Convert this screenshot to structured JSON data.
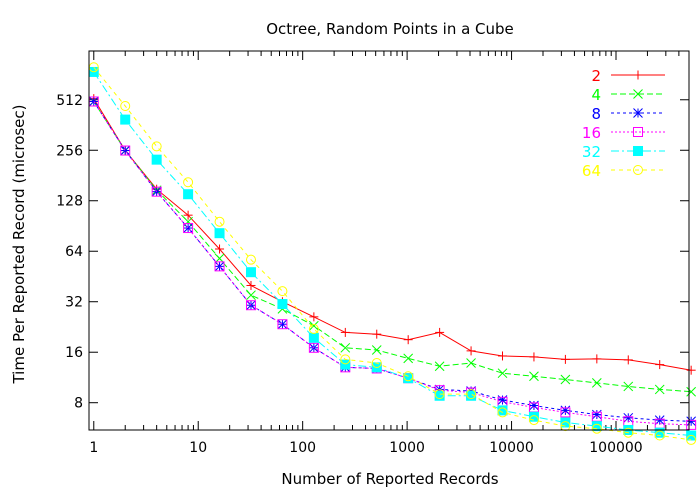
{
  "chart_data": {
    "type": "line",
    "title": "Octree, Random Points in a Cube",
    "xlabel": "Number of Reported Records",
    "ylabel": "Time Per Reported Record (microsec)",
    "x_scale": "log10",
    "y_scale": "log2",
    "xlim": [
      0.9,
      500000
    ],
    "ylim": [
      5.5,
      1000
    ],
    "x_ticks": [
      1,
      10,
      100,
      1000,
      10000,
      100000
    ],
    "x_tick_labels": [
      "1",
      "10",
      "100",
      "1000",
      "10000",
      "100000"
    ],
    "y_ticks": [
      8,
      16,
      32,
      64,
      128,
      256,
      512
    ],
    "y_tick_labels": [
      "8",
      "16",
      "32",
      "64",
      "128",
      "256",
      "512"
    ],
    "legend_position": "top-right",
    "x": [
      1,
      2,
      4,
      8,
      16,
      32,
      64,
      128,
      256,
      512,
      1024,
      2048,
      4096,
      8192,
      16384,
      32768,
      65536,
      131072,
      262144,
      524288
    ],
    "series": [
      {
        "name": "2",
        "color": "#ff0000",
        "marker": "plus",
        "dash": "",
        "values": [
          520,
          255,
          150,
          105,
          66,
          40,
          32,
          26,
          21,
          20.5,
          19,
          21,
          16.3,
          15.2,
          15,
          14.5,
          14.6,
          14.4,
          13.5,
          12.5
        ]
      },
      {
        "name": "4",
        "color": "#00ff00",
        "marker": "cross",
        "dash": "6,3",
        "values": [
          500,
          255,
          148,
          96,
          58,
          35,
          29,
          23,
          17,
          16.5,
          14.7,
          13.2,
          13.8,
          12,
          11.5,
          11,
          10.5,
          10,
          9.6,
          9.3
        ]
      },
      {
        "name": "8",
        "color": "#0000ff",
        "marker": "star",
        "dash": "3,3",
        "values": [
          500,
          255,
          145,
          88,
          52,
          30.5,
          23.5,
          17,
          13,
          12.8,
          11.2,
          9.6,
          9.4,
          8.3,
          7.7,
          7.2,
          6.8,
          6.5,
          6.3,
          6.2
        ]
      },
      {
        "name": "16",
        "color": "#ff00ff",
        "marker": "square",
        "dash": "2,2",
        "values": [
          500,
          255,
          145,
          88,
          52,
          30.5,
          23.5,
          17,
          13,
          12.8,
          11.2,
          9.5,
          9.2,
          8.1,
          7.5,
          7.0,
          6.6,
          6.2,
          6.0,
          5.9
        ]
      },
      {
        "name": "32",
        "color": "#00ffff",
        "marker": "filled-square",
        "dash": "8,3,2,3",
        "values": [
          750,
          390,
          225,
          140,
          82,
          48,
          31,
          19.5,
          13.5,
          13,
          11.2,
          8.8,
          8.8,
          7.2,
          6.6,
          6.1,
          5.8,
          5.5,
          5.3,
          5.1
        ]
      },
      {
        "name": "64",
        "color": "#ffff00",
        "marker": "circle",
        "dash": "4,4",
        "values": [
          800,
          470,
          270,
          165,
          96,
          57,
          37,
          22,
          14.5,
          13.8,
          11.5,
          9,
          9,
          7,
          6.3,
          5.8,
          5.6,
          5.3,
          5.1,
          4.8
        ]
      }
    ]
  }
}
